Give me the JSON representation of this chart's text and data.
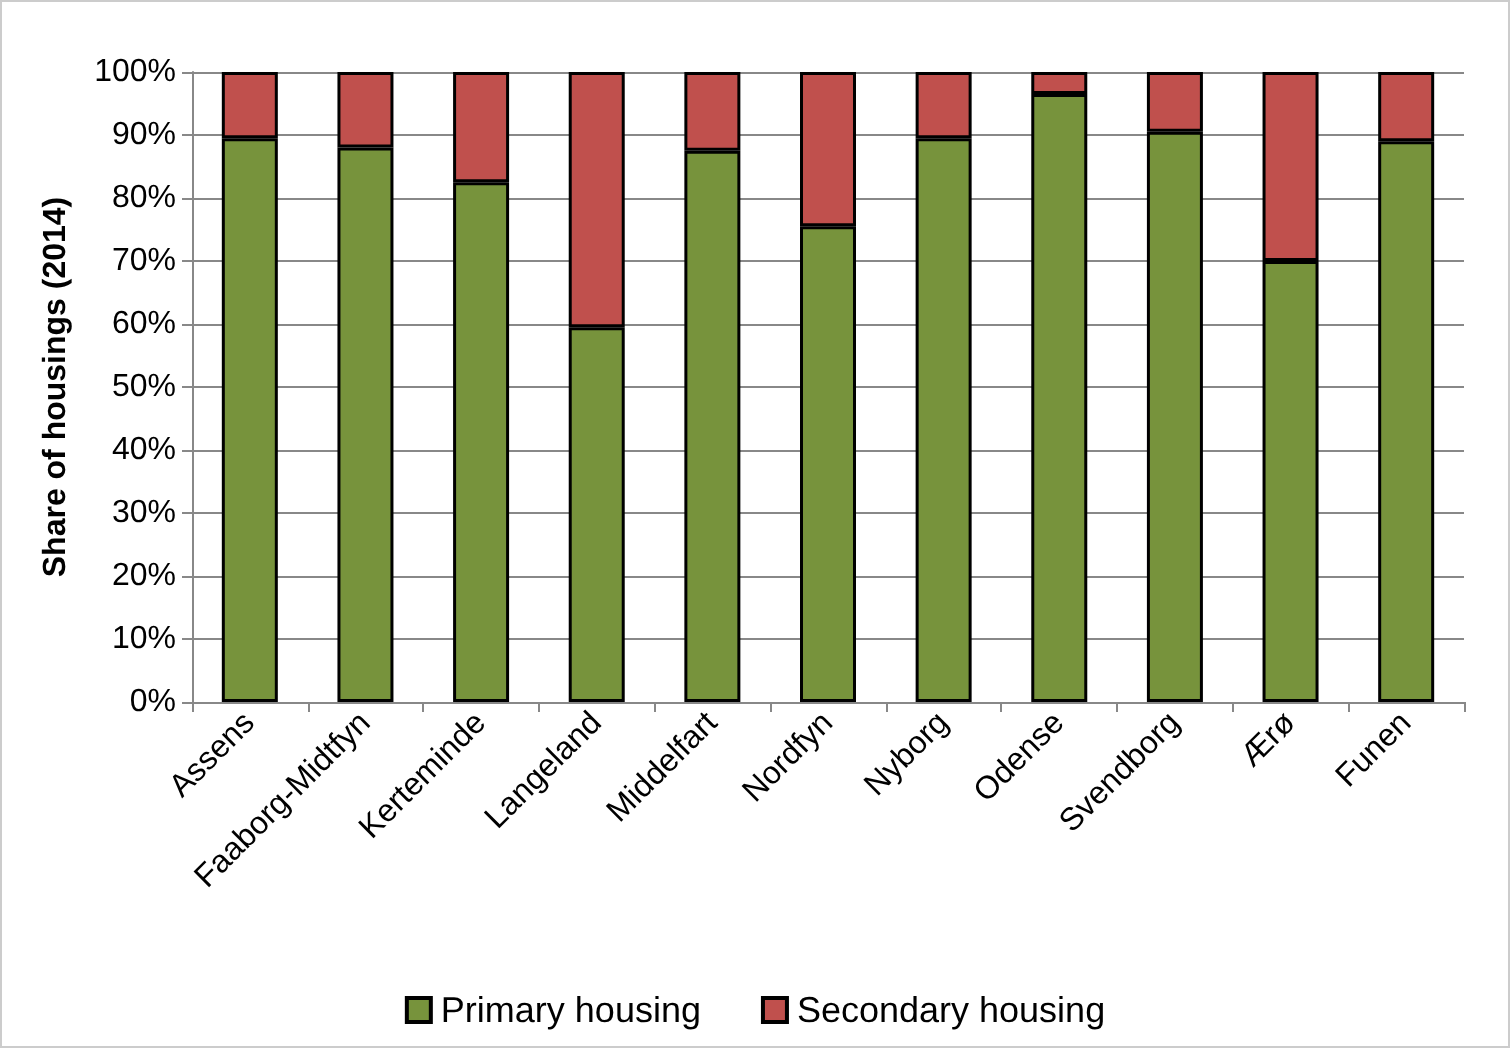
{
  "chart_data": {
    "type": "bar",
    "stacked": true,
    "ylabel": "Share of housings (2014)",
    "categories": [
      "Assens",
      "Faaborg-Midtfyn",
      "Kerteminde",
      "Langeland",
      "Middelfart",
      "Nordfyn",
      "Nyborg",
      "Odense",
      "Svendborg",
      "Ærø",
      "Funen"
    ],
    "series": [
      {
        "name": "Primary housing",
        "color": "#77933c",
        "values": [
          89.5,
          88,
          82.5,
          59.5,
          87.5,
          75.5,
          89.5,
          96.5,
          90.5,
          70,
          89
        ]
      },
      {
        "name": "Secondary housing",
        "color": "#c0504d",
        "values": [
          10.5,
          12,
          17.5,
          40.5,
          12.5,
          24.5,
          10.5,
          3.5,
          9.5,
          30,
          11
        ]
      }
    ],
    "ylim": [
      0,
      100
    ],
    "yticks": [
      {
        "value": 0,
        "label": "0%"
      },
      {
        "value": 10,
        "label": "10%"
      },
      {
        "value": 20,
        "label": "20%"
      },
      {
        "value": 30,
        "label": "30%"
      },
      {
        "value": 40,
        "label": "40%"
      },
      {
        "value": 50,
        "label": "50%"
      },
      {
        "value": 60,
        "label": "60%"
      },
      {
        "value": 70,
        "label": "70%"
      },
      {
        "value": 80,
        "label": "80%"
      },
      {
        "value": 90,
        "label": "90%"
      },
      {
        "value": 100,
        "label": "100%"
      }
    ],
    "grid": "y",
    "legend": "bottom"
  }
}
